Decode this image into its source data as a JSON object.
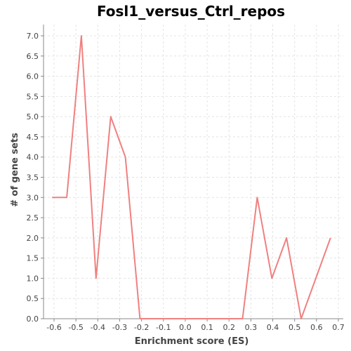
{
  "chart_data": {
    "type": "line",
    "title": "Fosl1_versus_Ctrl_repos",
    "xlabel": "Enrichment score (ES)",
    "ylabel": "# of gene sets",
    "xlim": [
      -0.65,
      0.72
    ],
    "ylim": [
      0.0,
      7.3
    ],
    "xticks": [
      -0.6,
      -0.5,
      -0.4,
      -0.3,
      -0.2,
      -0.1,
      0.0,
      0.1,
      0.2,
      0.3,
      0.4,
      0.5,
      0.6,
      0.7
    ],
    "xtick_labels": [
      "-0.6",
      "-0.5",
      "-0.4",
      "-0.3",
      "-0.2",
      "-0.1",
      "0.0",
      "0.1",
      "0.2",
      "0.3",
      "0.4",
      "0.5",
      "0.6",
      "0.7"
    ],
    "yticks": [
      0.0,
      0.5,
      1.0,
      1.5,
      2.0,
      2.5,
      3.0,
      3.5,
      4.0,
      4.5,
      5.0,
      5.5,
      6.0,
      6.5,
      7.0
    ],
    "ytick_labels": [
      "0.0",
      "0.5",
      "1.0",
      "1.5",
      "2.0",
      "2.5",
      "3.0",
      "3.5",
      "4.0",
      "4.5",
      "5.0",
      "5.5",
      "6.0",
      "6.5",
      "7.0"
    ],
    "grid": true,
    "series": [
      {
        "color": "#f08080",
        "x": [
          -0.609,
          -0.542,
          -0.475,
          -0.408,
          -0.341,
          -0.274,
          -0.207,
          -0.14,
          -0.073,
          -0.006,
          0.061,
          0.128,
          0.195,
          0.262,
          0.329,
          0.396,
          0.463,
          0.53,
          0.664
        ],
        "y": [
          3,
          3,
          7,
          1,
          5,
          4,
          0,
          0,
          0,
          0,
          0,
          0,
          0,
          0,
          3,
          1,
          2,
          0,
          2
        ]
      }
    ]
  }
}
